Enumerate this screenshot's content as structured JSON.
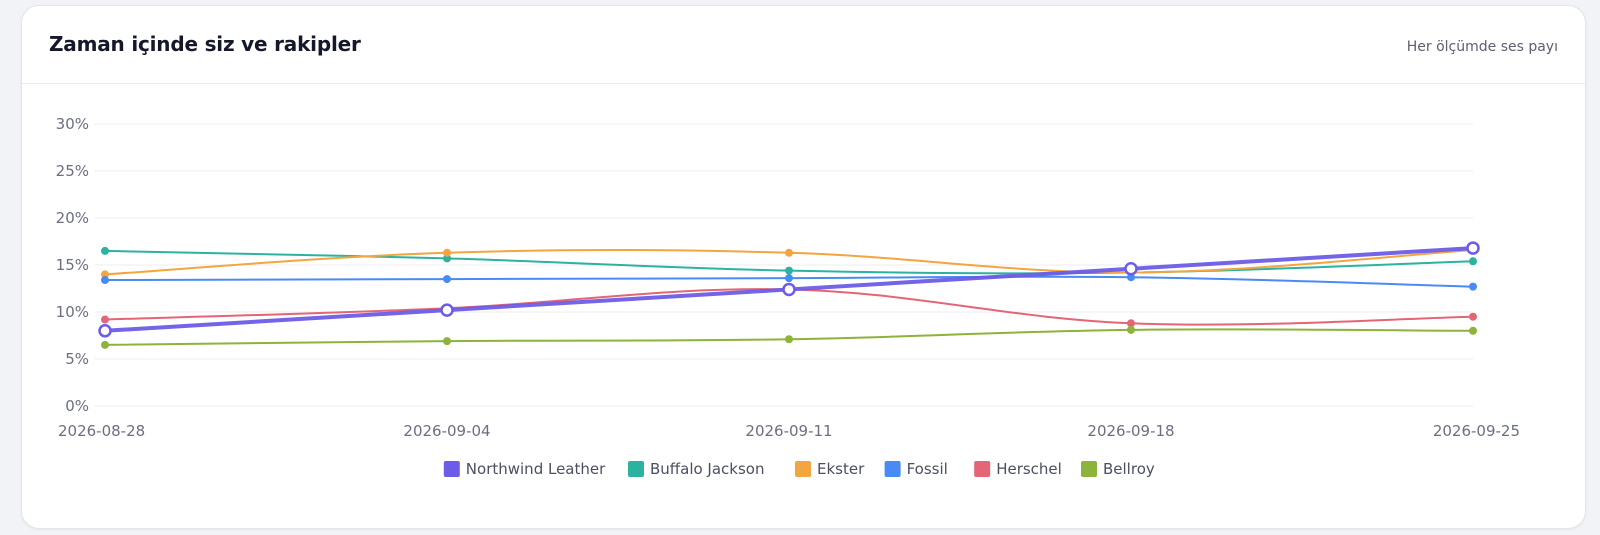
{
  "header": {
    "title": "Zaman içinde siz ve rakipler",
    "subtitle": "Her ölçümde ses payı"
  },
  "chart_data": {
    "type": "line",
    "x": [
      "2026-08-28",
      "2026-09-04",
      "2026-09-11",
      "2026-09-18",
      "2026-09-25"
    ],
    "ylim": [
      0,
      30
    ],
    "yticks": [
      0,
      5,
      10,
      15,
      20,
      25,
      30
    ],
    "ytick_labels": [
      "0%",
      "5%",
      "10%",
      "15%",
      "20%",
      "25%",
      "30%"
    ],
    "grid": true,
    "legend_position": "bottom",
    "series": [
      {
        "name": "Buffalo Jackson",
        "color": "#2bb3a0",
        "values": [
          16.5,
          15.7,
          14.4,
          14.2,
          15.4
        ]
      },
      {
        "name": "Ekster",
        "color": "#f2a541",
        "values": [
          14.0,
          16.3,
          16.3,
          14.2,
          16.6
        ]
      },
      {
        "name": "Fossil",
        "color": "#4a8af4",
        "values": [
          13.4,
          13.5,
          13.6,
          13.7,
          12.7
        ]
      },
      {
        "name": "Herschel",
        "color": "#e36576",
        "values": [
          9.2,
          10.4,
          12.4,
          8.8,
          9.5
        ]
      },
      {
        "name": "Bellroy",
        "color": "#8db33a",
        "values": [
          6.5,
          6.9,
          7.1,
          8.1,
          8.0
        ]
      },
      {
        "name": "Northwind Leather",
        "color": "#6c5ce7",
        "highlight": true,
        "values": [
          8.0,
          10.2,
          12.4,
          14.6,
          16.8
        ]
      }
    ],
    "legend_order": [
      "Northwind Leather",
      "Buffalo Jackson",
      "Ekster",
      "Fossil",
      "Herschel",
      "Bellroy"
    ]
  }
}
